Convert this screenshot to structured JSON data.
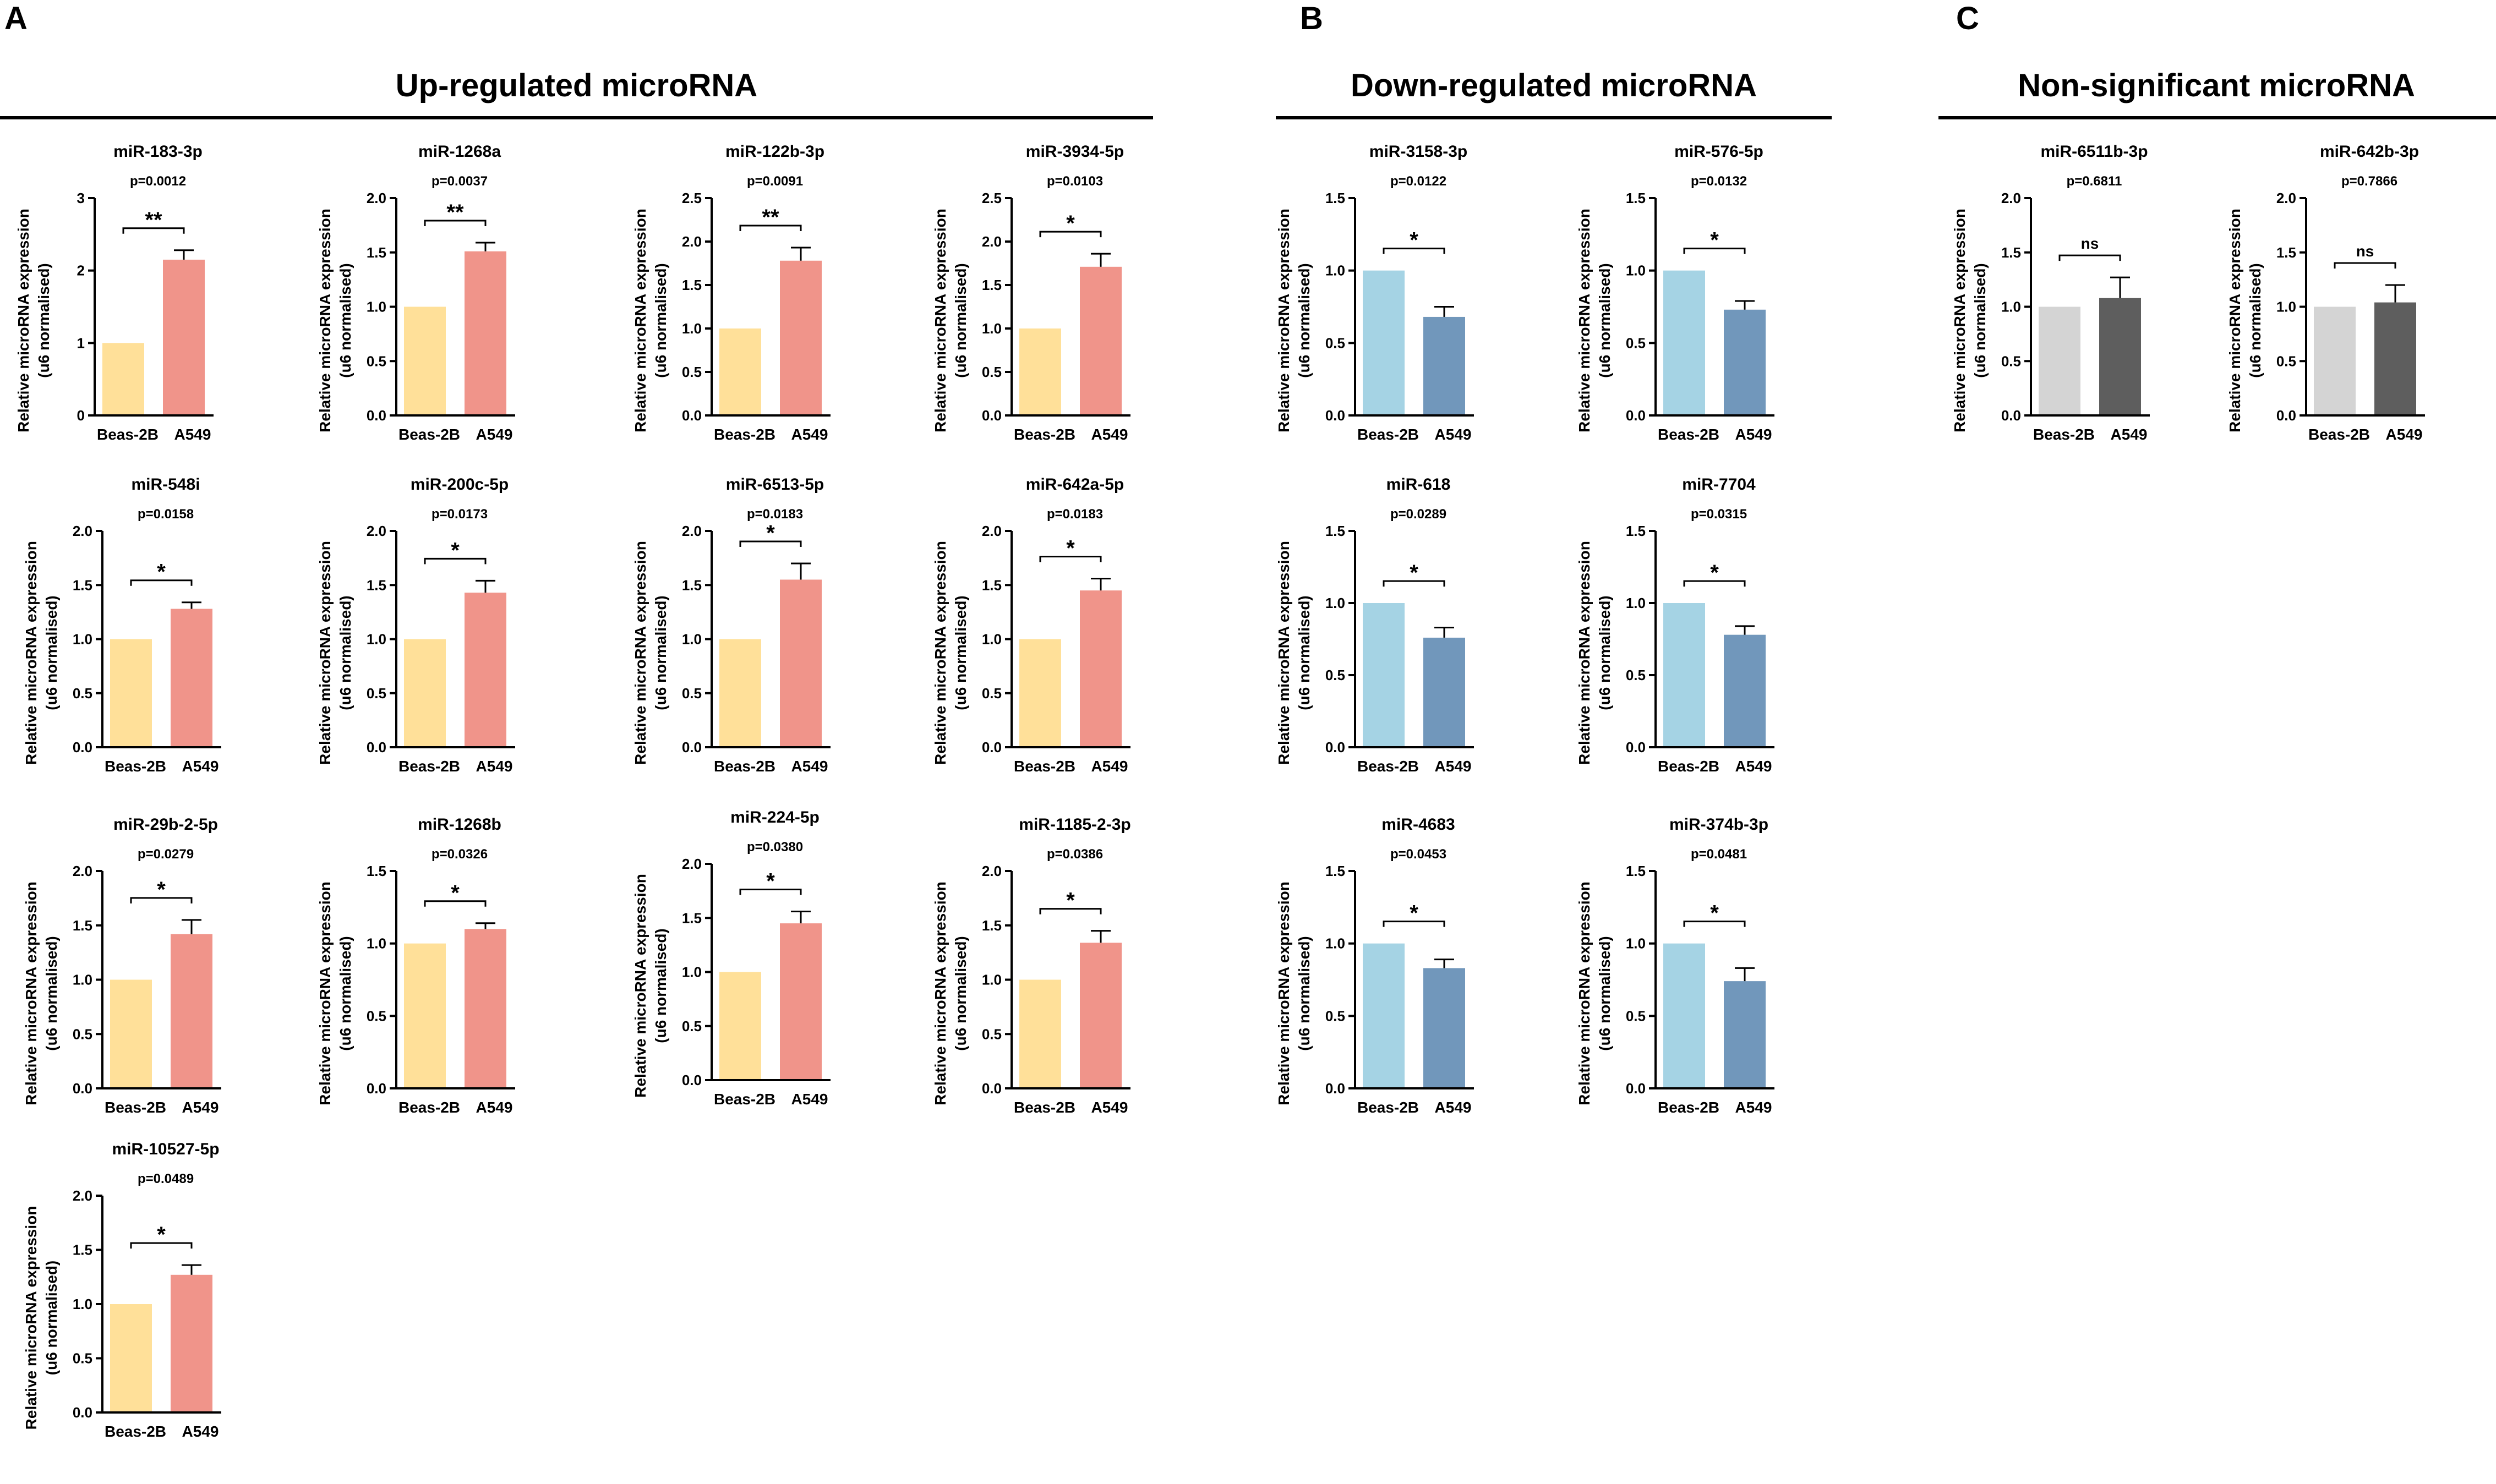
{
  "panels": [
    {
      "letter": "A",
      "title": "Up-regulated microRNA"
    },
    {
      "letter": "B",
      "title": "Down-regulated microRNA"
    },
    {
      "letter": "C",
      "title": "Non-significant microRNA"
    }
  ],
  "chart_data": [
    {
      "type": "bar",
      "panel": "A",
      "title": "miR-183-3p",
      "pvalue": "p=0.0012",
      "significance": "**",
      "categories": [
        "Beas-2B",
        "A549"
      ],
      "values": [
        1.0,
        2.15
      ],
      "errors": [
        0,
        0.13
      ],
      "colors": [
        "#FFE099",
        "#F0948A"
      ],
      "ylim": [
        0,
        3
      ],
      "yticks": [
        "0",
        "1",
        "2",
        "3"
      ],
      "ylabel": "Relative microRNA expression",
      "ylabel2": "(u6 normalised)"
    },
    {
      "type": "bar",
      "panel": "A",
      "title": "miR-1268a",
      "pvalue": "p=0.0037",
      "significance": "**",
      "categories": [
        "Beas-2B",
        "A549"
      ],
      "values": [
        1.0,
        1.51
      ],
      "errors": [
        0,
        0.08
      ],
      "colors": [
        "#FFE099",
        "#F0948A"
      ],
      "ylim": [
        0,
        2
      ],
      "yticks": [
        "0.0",
        "0.5",
        "1.0",
        "1.5",
        "2.0"
      ],
      "ylabel": "Relative microRNA expression",
      "ylabel2": "(u6 normalised)"
    },
    {
      "type": "bar",
      "panel": "A",
      "title": "miR-122b-3p",
      "pvalue": "p=0.0091",
      "significance": "**",
      "categories": [
        "Beas-2B",
        "A549"
      ],
      "values": [
        1.0,
        1.78
      ],
      "errors": [
        0,
        0.15
      ],
      "colors": [
        "#FFE099",
        "#F0948A"
      ],
      "ylim": [
        0,
        2.5
      ],
      "yticks": [
        "0.0",
        "0.5",
        "1.0",
        "1.5",
        "2.0",
        "2.5"
      ],
      "ylabel": "Relative microRNA expression",
      "ylabel2": "(u6 normalised)"
    },
    {
      "type": "bar",
      "panel": "A",
      "title": "miR-3934-5p",
      "pvalue": "p=0.0103",
      "significance": "*",
      "categories": [
        "Beas-2B",
        "A549"
      ],
      "values": [
        1.0,
        1.71
      ],
      "errors": [
        0,
        0.15
      ],
      "colors": [
        "#FFE099",
        "#F0948A"
      ],
      "ylim": [
        0,
        2.5
      ],
      "yticks": [
        "0.0",
        "0.5",
        "1.0",
        "1.5",
        "2.0",
        "2.5"
      ],
      "ylabel": "Relative microRNA expression",
      "ylabel2": "(u6 normalised)"
    },
    {
      "type": "bar",
      "panel": "A",
      "title": "miR-548i",
      "pvalue": "p=0.0158",
      "significance": "*",
      "categories": [
        "Beas-2B",
        "A549"
      ],
      "values": [
        1.0,
        1.28
      ],
      "errors": [
        0,
        0.06
      ],
      "colors": [
        "#FFE099",
        "#F0948A"
      ],
      "ylim": [
        0,
        2
      ],
      "yticks": [
        "0.0",
        "0.5",
        "1.0",
        "1.5",
        "2.0"
      ],
      "ylabel": "Relative microRNA expression",
      "ylabel2": "(u6 normalised)"
    },
    {
      "type": "bar",
      "panel": "A",
      "title": "miR-200c-5p",
      "pvalue": "p=0.0173",
      "significance": "*",
      "categories": [
        "Beas-2B",
        "A549"
      ],
      "values": [
        1.0,
        1.43
      ],
      "errors": [
        0,
        0.11
      ],
      "colors": [
        "#FFE099",
        "#F0948A"
      ],
      "ylim": [
        0,
        2
      ],
      "yticks": [
        "0.0",
        "0.5",
        "1.0",
        "1.5",
        "2.0"
      ],
      "ylabel": "Relative microRNA expression",
      "ylabel2": "(u6 normalised)"
    },
    {
      "type": "bar",
      "panel": "A",
      "title": "miR-6513-5p",
      "pvalue": "p=0.0183",
      "significance": "*",
      "categories": [
        "Beas-2B",
        "A549"
      ],
      "values": [
        1.0,
        1.55
      ],
      "errors": [
        0,
        0.15
      ],
      "colors": [
        "#FFE099",
        "#F0948A"
      ],
      "ylim": [
        0,
        2
      ],
      "yticks": [
        "0.0",
        "0.5",
        "1.0",
        "1.5",
        "2.0"
      ],
      "ylabel": "Relative microRNA expression",
      "ylabel2": "(u6 normalised)"
    },
    {
      "type": "bar",
      "panel": "A",
      "title": "miR-642a-5p",
      "pvalue": "p=0.0183",
      "significance": "*",
      "categories": [
        "Beas-2B",
        "A549"
      ],
      "values": [
        1.0,
        1.45
      ],
      "errors": [
        0,
        0.11
      ],
      "colors": [
        "#FFE099",
        "#F0948A"
      ],
      "ylim": [
        0,
        2
      ],
      "yticks": [
        "0.0",
        "0.5",
        "1.0",
        "1.5",
        "2.0"
      ],
      "ylabel": "Relative microRNA expression",
      "ylabel2": "(u6 normalised)"
    },
    {
      "type": "bar",
      "panel": "A",
      "title": "miR-29b-2-5p",
      "pvalue": "p=0.0279",
      "significance": "*",
      "categories": [
        "Beas-2B",
        "A549"
      ],
      "values": [
        1.0,
        1.42
      ],
      "errors": [
        0,
        0.13
      ],
      "colors": [
        "#FFE099",
        "#F0948A"
      ],
      "ylim": [
        0,
        2
      ],
      "yticks": [
        "0.0",
        "0.5",
        "1.0",
        "1.5",
        "2.0"
      ],
      "ylabel": "Relative microRNA expression",
      "ylabel2": "(u6 normalised)"
    },
    {
      "type": "bar",
      "panel": "A",
      "title": "miR-1268b",
      "pvalue": "p=0.0326",
      "significance": "*",
      "categories": [
        "Beas-2B",
        "A549"
      ],
      "values": [
        1.0,
        1.1
      ],
      "errors": [
        0,
        0.04
      ],
      "colors": [
        "#FFE099",
        "#F0948A"
      ],
      "ylim": [
        0,
        1.5
      ],
      "yticks": [
        "0.0",
        "0.5",
        "1.0",
        "1.5"
      ],
      "ylabel": "Relative microRNA expression",
      "ylabel2": "(u6 normalised)"
    },
    {
      "type": "bar",
      "panel": "A",
      "title": "miR-224-5p",
      "pvalue": "p=0.0380",
      "significance": "*",
      "categories": [
        "Beas-2B",
        "A549"
      ],
      "values": [
        1.0,
        1.45
      ],
      "errors": [
        0,
        0.11
      ],
      "colors": [
        "#FFE099",
        "#F0948A"
      ],
      "ylim": [
        0,
        2
      ],
      "yticks": [
        "0.0",
        "0.5",
        "1.0",
        "1.5",
        "2.0"
      ],
      "ylabel": "Relative microRNA expression",
      "ylabel2": "(u6 normalised)"
    },
    {
      "type": "bar",
      "panel": "A",
      "title": "miR-1185-2-3p",
      "pvalue": "p=0.0386",
      "significance": "*",
      "categories": [
        "Beas-2B",
        "A549"
      ],
      "values": [
        1.0,
        1.34
      ],
      "errors": [
        0,
        0.11
      ],
      "colors": [
        "#FFE099",
        "#F0948A"
      ],
      "ylim": [
        0,
        2
      ],
      "yticks": [
        "0.0",
        "0.5",
        "1.0",
        "1.5",
        "2.0"
      ],
      "ylabel": "Relative microRNA expression",
      "ylabel2": "(u6 normalised)"
    },
    {
      "type": "bar",
      "panel": "A",
      "title": "miR-10527-5p",
      "pvalue": "p=0.0489",
      "significance": "*",
      "categories": [
        "Beas-2B",
        "A549"
      ],
      "values": [
        1.0,
        1.27
      ],
      "errors": [
        0,
        0.09
      ],
      "colors": [
        "#FFE099",
        "#F0948A"
      ],
      "ylim": [
        0,
        2
      ],
      "yticks": [
        "0.0",
        "0.5",
        "1.0",
        "1.5",
        "2.0"
      ],
      "ylabel": "Relative microRNA expression",
      "ylabel2": "(u6 normalised)"
    },
    {
      "type": "bar",
      "panel": "B",
      "title": "miR-3158-3p",
      "pvalue": "p=0.0122",
      "significance": "*",
      "categories": [
        "Beas-2B",
        "A549"
      ],
      "values": [
        1.0,
        0.68
      ],
      "errors": [
        0,
        0.07
      ],
      "colors": [
        "#A5D3E4",
        "#7197BB"
      ],
      "ylim": [
        0,
        1.5
      ],
      "yticks": [
        "0.0",
        "0.5",
        "1.0",
        "1.5"
      ],
      "ylabel": "Relative microRNA expression",
      "ylabel2": "(u6 normalised)"
    },
    {
      "type": "bar",
      "panel": "B",
      "title": "miR-576-5p",
      "pvalue": "p=0.0132",
      "significance": "*",
      "categories": [
        "Beas-2B",
        "A549"
      ],
      "values": [
        1.0,
        0.73
      ],
      "errors": [
        0,
        0.06
      ],
      "colors": [
        "#A5D3E4",
        "#7197BB"
      ],
      "ylim": [
        0,
        1.5
      ],
      "yticks": [
        "0.0",
        "0.5",
        "1.0",
        "1.5"
      ],
      "ylabel": "Relative microRNA expression",
      "ylabel2": "(u6 normalised)"
    },
    {
      "type": "bar",
      "panel": "B",
      "title": "miR-618",
      "pvalue": "p=0.0289",
      "significance": "*",
      "categories": [
        "Beas-2B",
        "A549"
      ],
      "values": [
        1.0,
        0.76
      ],
      "errors": [
        0,
        0.07
      ],
      "colors": [
        "#A5D3E4",
        "#7197BB"
      ],
      "ylim": [
        0,
        1.5
      ],
      "yticks": [
        "0.0",
        "0.5",
        "1.0",
        "1.5"
      ],
      "ylabel": "Relative microRNA expression",
      "ylabel2": "(u6 normalised)"
    },
    {
      "type": "bar",
      "panel": "B",
      "title": "miR-7704",
      "pvalue": "p=0.0315",
      "significance": "*",
      "categories": [
        "Beas-2B",
        "A549"
      ],
      "values": [
        1.0,
        0.78
      ],
      "errors": [
        0,
        0.06
      ],
      "colors": [
        "#A5D3E4",
        "#7197BB"
      ],
      "ylim": [
        0,
        1.5
      ],
      "yticks": [
        "0.0",
        "0.5",
        "1.0",
        "1.5"
      ],
      "ylabel": "Relative microRNA expression",
      "ylabel2": "(u6 normalised)"
    },
    {
      "type": "bar",
      "panel": "B",
      "title": "miR-4683",
      "pvalue": "p=0.0453",
      "significance": "*",
      "categories": [
        "Beas-2B",
        "A549"
      ],
      "values": [
        1.0,
        0.83
      ],
      "errors": [
        0,
        0.06
      ],
      "colors": [
        "#A5D3E4",
        "#7197BB"
      ],
      "ylim": [
        0,
        1.5
      ],
      "yticks": [
        "0.0",
        "0.5",
        "1.0",
        "1.5"
      ],
      "ylabel": "Relative microRNA expression",
      "ylabel2": "(u6 normalised)"
    },
    {
      "type": "bar",
      "panel": "B",
      "title": "miR-374b-3p",
      "pvalue": "p=0.0481",
      "significance": "*",
      "categories": [
        "Beas-2B",
        "A549"
      ],
      "values": [
        1.0,
        0.74
      ],
      "errors": [
        0,
        0.09
      ],
      "colors": [
        "#A5D3E4",
        "#7197BB"
      ],
      "ylim": [
        0,
        1.5
      ],
      "yticks": [
        "0.0",
        "0.5",
        "1.0",
        "1.5"
      ],
      "ylabel": "Relative microRNA expression",
      "ylabel2": "(u6 normalised)"
    },
    {
      "type": "bar",
      "panel": "C",
      "title": "miR-6511b-3p",
      "pvalue": "p=0.6811",
      "significance": "ns",
      "categories": [
        "Beas-2B",
        "A549"
      ],
      "values": [
        1.0,
        1.08
      ],
      "errors": [
        0,
        0.19
      ],
      "colors": [
        "#D4D4D4",
        "#5E5E5E"
      ],
      "ylim": [
        0,
        2
      ],
      "yticks": [
        "0.0",
        "0.5",
        "1.0",
        "1.5",
        "2.0"
      ],
      "ylabel": "Relative microRNA expression",
      "ylabel2": "(u6 normalised)"
    },
    {
      "type": "bar",
      "panel": "C",
      "title": "miR-642b-3p",
      "pvalue": "p=0.7866",
      "significance": "ns",
      "categories": [
        "Beas-2B",
        "A549"
      ],
      "values": [
        1.0,
        1.04
      ],
      "errors": [
        0,
        0.16
      ],
      "colors": [
        "#D4D4D4",
        "#5E5E5E"
      ],
      "ylim": [
        0,
        2
      ],
      "yticks": [
        "0.0",
        "0.5",
        "1.0",
        "1.5",
        "2.0"
      ],
      "ylabel": "Relative microRNA expression",
      "ylabel2": "(u6 normalised)"
    }
  ]
}
